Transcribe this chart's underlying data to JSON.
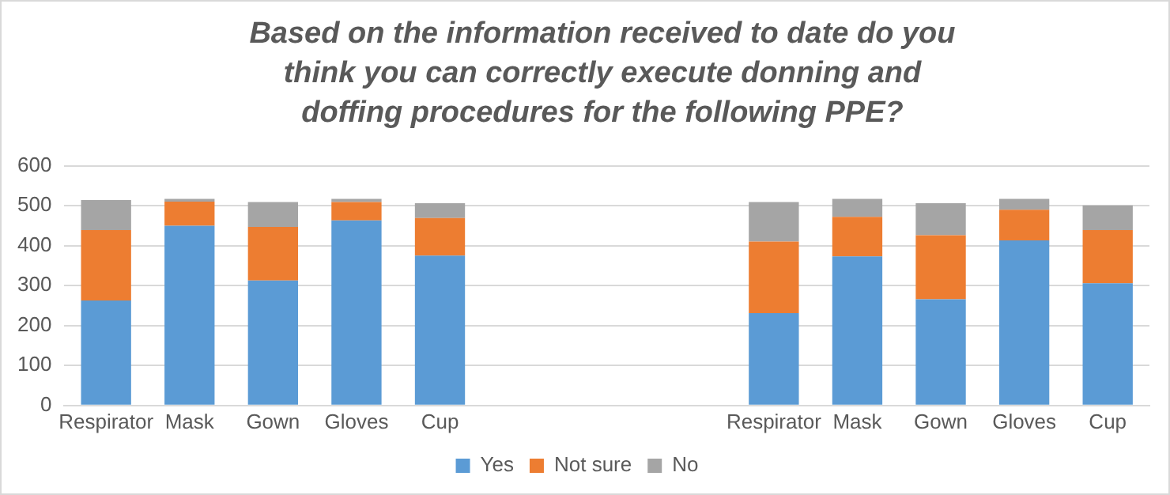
{
  "chart_data": {
    "type": "bar",
    "stacked": true,
    "title": "Based on the information received to date do you think you can correctly execute donning and doffing procedures for the following PPE?",
    "categories": [
      "Respirator",
      "Mask",
      "Gown",
      "Gloves",
      "Cup",
      null,
      null,
      null,
      "Respirator",
      "Mask",
      "Gown",
      "Gloves",
      "Cup"
    ],
    "series": [
      {
        "name": "Yes",
        "color": "#5b9bd5",
        "values": [
          263,
          450,
          313,
          463,
          375,
          null,
          null,
          null,
          231,
          373,
          266,
          413,
          306
        ]
      },
      {
        "name": "Not sure",
        "color": "#ed7d31",
        "values": [
          176,
          60,
          134,
          46,
          94,
          null,
          null,
          null,
          179,
          99,
          160,
          77,
          133
        ]
      },
      {
        "name": "No",
        "color": "#a5a5a5",
        "values": [
          75,
          7,
          62,
          8,
          37,
          null,
          null,
          null,
          99,
          45,
          80,
          27,
          62
        ]
      }
    ],
    "ylim": [
      0,
      600
    ],
    "yticks": [
      0,
      100,
      200,
      300,
      400,
      500,
      600
    ],
    "grid": "y",
    "legend": "bottom"
  }
}
